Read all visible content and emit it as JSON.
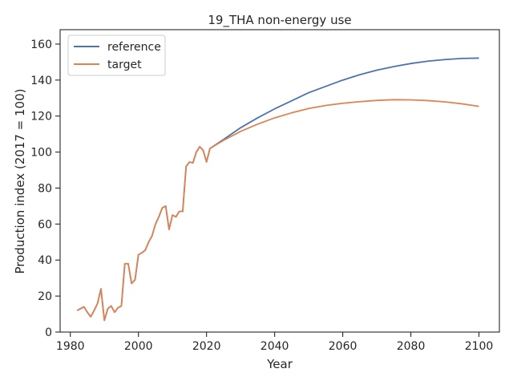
{
  "chart_data": {
    "type": "line",
    "title": "19_THA non-energy use",
    "xlabel": "Year",
    "ylabel": "Production index (2017 = 100)",
    "xlim": [
      1977,
      2106
    ],
    "ylim": [
      0,
      168
    ],
    "xticks": [
      1980,
      2000,
      2020,
      2040,
      2060,
      2080,
      2100
    ],
    "yticks": [
      0,
      20,
      40,
      60,
      80,
      100,
      120,
      140,
      160
    ],
    "grid": false,
    "legend_position": "top-left",
    "colors": {
      "reference": "#4c72b0",
      "target": "#dd8452"
    },
    "historical": {
      "x": [
        1982,
        1983,
        1984,
        1985,
        1986,
        1987,
        1988,
        1989,
        1990,
        1991,
        1992,
        1993,
        1994,
        1995,
        1996,
        1997,
        1998,
        1999,
        2000,
        2001,
        2002,
        2003,
        2004,
        2005,
        2006,
        2007,
        2008,
        2009,
        2010,
        2011,
        2012,
        2013,
        2014,
        2015,
        2016,
        2017,
        2018,
        2019,
        2020,
        2021
      ],
      "y": [
        12,
        13,
        14,
        11,
        8.5,
        12,
        16,
        24,
        6.5,
        13,
        14.5,
        11,
        13.5,
        14.5,
        38,
        38,
        27,
        29,
        43,
        44,
        45.5,
        50,
        53.5,
        60,
        64,
        69,
        70,
        57,
        65,
        64,
        67,
        67,
        92,
        94.5,
        94,
        100,
        103,
        101,
        94.5,
        102
      ]
    },
    "series": [
      {
        "name": "reference",
        "x": [
          2021,
          2025,
          2030,
          2035,
          2040,
          2045,
          2050,
          2055,
          2060,
          2065,
          2070,
          2075,
          2080,
          2085,
          2090,
          2095,
          2100
        ],
        "y": [
          102,
          107,
          113.5,
          119,
          124,
          128.5,
          133,
          136.5,
          140,
          143,
          145.5,
          147.5,
          149.2,
          150.5,
          151.4,
          152,
          152.2
        ]
      },
      {
        "name": "target",
        "x": [
          2021,
          2025,
          2030,
          2035,
          2040,
          2045,
          2050,
          2055,
          2060,
          2065,
          2070,
          2075,
          2080,
          2085,
          2090,
          2095,
          2100
        ],
        "y": [
          102,
          106.5,
          111.5,
          115.5,
          119,
          121.8,
          124.2,
          125.9,
          127.1,
          128,
          128.7,
          129.1,
          129,
          128.6,
          127.9,
          126.8,
          125.4
        ]
      }
    ]
  }
}
